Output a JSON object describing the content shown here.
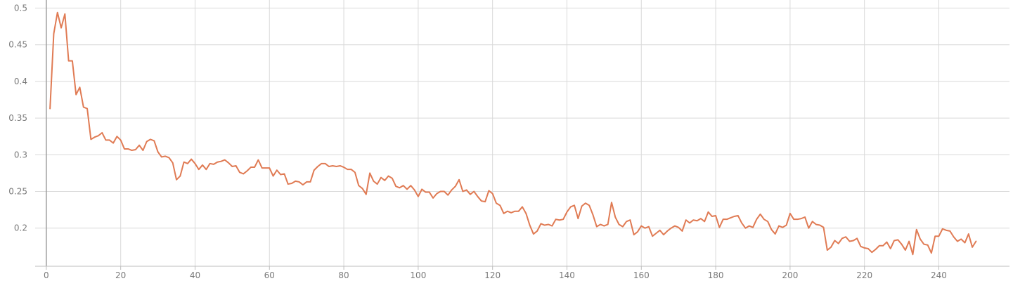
{
  "chart_data": {
    "type": "line",
    "title": "",
    "xlabel": "",
    "ylabel": "",
    "xlim": [
      -3,
      259
    ],
    "ylim": [
      0.148,
      0.511
    ],
    "x_ticks": [
      0,
      20,
      40,
      60,
      80,
      100,
      120,
      140,
      160,
      180,
      200,
      220,
      240
    ],
    "y_ticks": [
      0.2,
      0.25,
      0.3,
      0.35,
      0.4,
      0.45,
      0.5
    ],
    "x_tick_labels": [
      "0",
      "20",
      "40",
      "60",
      "80",
      "100",
      "120",
      "140",
      "160",
      "180",
      "200",
      "220",
      "240"
    ],
    "y_tick_labels": [
      "0.2",
      "0.25",
      "0.3",
      "0.35",
      "0.4",
      "0.45",
      "0.5"
    ],
    "grid": true,
    "line_color": "#e07b54",
    "series": [
      {
        "name": "",
        "x": [
          1,
          2,
          3,
          4,
          5,
          6,
          7,
          8,
          9,
          10,
          11,
          12,
          13,
          14,
          15,
          16,
          17,
          18,
          19,
          20,
          21,
          22,
          23,
          24,
          25,
          26,
          27,
          28,
          29,
          30,
          31,
          32,
          33,
          34,
          35,
          36,
          37,
          38,
          39,
          40,
          41,
          42,
          43,
          44,
          45,
          46,
          47,
          48,
          49,
          50,
          51,
          52,
          53,
          54,
          55,
          56,
          57,
          58,
          59,
          60,
          61,
          62,
          63,
          64,
          65,
          66,
          67,
          68,
          69,
          70,
          71,
          72,
          73,
          74,
          75,
          76,
          77,
          78,
          79,
          80,
          81,
          82,
          83,
          84,
          85,
          86,
          87,
          88,
          89,
          90,
          91,
          92,
          93,
          94,
          95,
          96,
          97,
          98,
          99,
          100,
          101,
          102,
          103,
          104,
          105,
          106,
          107,
          108,
          109,
          110,
          111,
          112,
          113,
          114,
          115,
          116,
          117,
          118,
          119,
          120,
          121,
          122,
          123,
          124,
          125,
          126,
          127,
          128,
          129,
          130,
          131,
          132,
          133,
          134,
          135,
          136,
          137,
          138,
          139,
          140,
          141,
          142,
          143,
          144,
          145,
          146,
          147,
          148,
          149,
          150,
          151,
          152,
          153,
          154,
          155,
          156,
          157,
          158,
          159,
          160,
          161,
          162,
          163,
          164,
          165,
          166,
          167,
          168,
          169,
          170,
          171,
          172,
          173,
          174,
          175,
          176,
          177,
          178,
          179,
          180,
          181,
          182,
          183,
          184,
          185,
          186,
          187,
          188,
          189,
          190,
          191,
          192,
          193,
          194,
          195,
          196,
          197,
          198,
          199,
          200,
          201,
          202,
          203,
          204,
          205,
          206,
          207,
          208,
          209,
          210,
          211,
          212,
          213,
          214,
          215,
          216,
          217,
          218,
          219,
          220,
          221,
          222,
          223,
          224,
          225,
          226,
          227,
          228,
          229,
          230,
          231,
          232,
          233,
          234,
          235,
          236,
          237,
          238,
          239,
          240,
          241,
          242,
          243,
          244,
          245,
          246,
          247,
          248,
          249,
          250
        ],
        "values": [
          0.363,
          0.465,
          0.494,
          0.473,
          0.492,
          0.428,
          0.428,
          0.382,
          0.392,
          0.365,
          0.363,
          0.321,
          0.324,
          0.326,
          0.33,
          0.32,
          0.32,
          0.316,
          0.325,
          0.32,
          0.308,
          0.308,
          0.306,
          0.307,
          0.313,
          0.306,
          0.318,
          0.321,
          0.319,
          0.304,
          0.297,
          0.298,
          0.296,
          0.289,
          0.266,
          0.271,
          0.29,
          0.288,
          0.294,
          0.288,
          0.28,
          0.286,
          0.28,
          0.288,
          0.287,
          0.29,
          0.291,
          0.293,
          0.289,
          0.284,
          0.285,
          0.276,
          0.274,
          0.278,
          0.283,
          0.283,
          0.293,
          0.282,
          0.282,
          0.282,
          0.271,
          0.279,
          0.273,
          0.274,
          0.26,
          0.261,
          0.264,
          0.263,
          0.259,
          0.263,
          0.263,
          0.279,
          0.284,
          0.288,
          0.288,
          0.284,
          0.285,
          0.284,
          0.285,
          0.283,
          0.28,
          0.28,
          0.276,
          0.258,
          0.254,
          0.246,
          0.275,
          0.264,
          0.26,
          0.269,
          0.265,
          0.271,
          0.268,
          0.257,
          0.255,
          0.258,
          0.253,
          0.258,
          0.252,
          0.243,
          0.253,
          0.249,
          0.249,
          0.241,
          0.247,
          0.25,
          0.25,
          0.245,
          0.252,
          0.257,
          0.266,
          0.25,
          0.252,
          0.246,
          0.25,
          0.243,
          0.237,
          0.236,
          0.251,
          0.247,
          0.234,
          0.231,
          0.22,
          0.223,
          0.221,
          0.223,
          0.223,
          0.229,
          0.22,
          0.204,
          0.192,
          0.196,
          0.206,
          0.204,
          0.205,
          0.203,
          0.212,
          0.211,
          0.212,
          0.222,
          0.229,
          0.231,
          0.213,
          0.23,
          0.234,
          0.231,
          0.218,
          0.202,
          0.205,
          0.203,
          0.205,
          0.235,
          0.215,
          0.205,
          0.202,
          0.209,
          0.211,
          0.191,
          0.195,
          0.203,
          0.2,
          0.202,
          0.189,
          0.193,
          0.197,
          0.191,
          0.196,
          0.2,
          0.203,
          0.201,
          0.196,
          0.211,
          0.207,
          0.211,
          0.21,
          0.213,
          0.209,
          0.222,
          0.216,
          0.217,
          0.201,
          0.212,
          0.212,
          0.214,
          0.216,
          0.217,
          0.207,
          0.2,
          0.203,
          0.201,
          0.212,
          0.219,
          0.212,
          0.209,
          0.198,
          0.192,
          0.203,
          0.201,
          0.204,
          0.22,
          0.212,
          0.212,
          0.213,
          0.215,
          0.2,
          0.209,
          0.205,
          0.204,
          0.201,
          0.17,
          0.174,
          0.183,
          0.179,
          0.186,
          0.188,
          0.182,
          0.183,
          0.186,
          0.175,
          0.173,
          0.172,
          0.167,
          0.171,
          0.176,
          0.176,
          0.181,
          0.172,
          0.183,
          0.184,
          0.178,
          0.17,
          0.182,
          0.164,
          0.198,
          0.185,
          0.178,
          0.177,
          0.166,
          0.189,
          0.189,
          0.199,
          0.197,
          0.196,
          0.188,
          0.182,
          0.185,
          0.18,
          0.192,
          0.174,
          0.182
        ]
      }
    ]
  }
}
